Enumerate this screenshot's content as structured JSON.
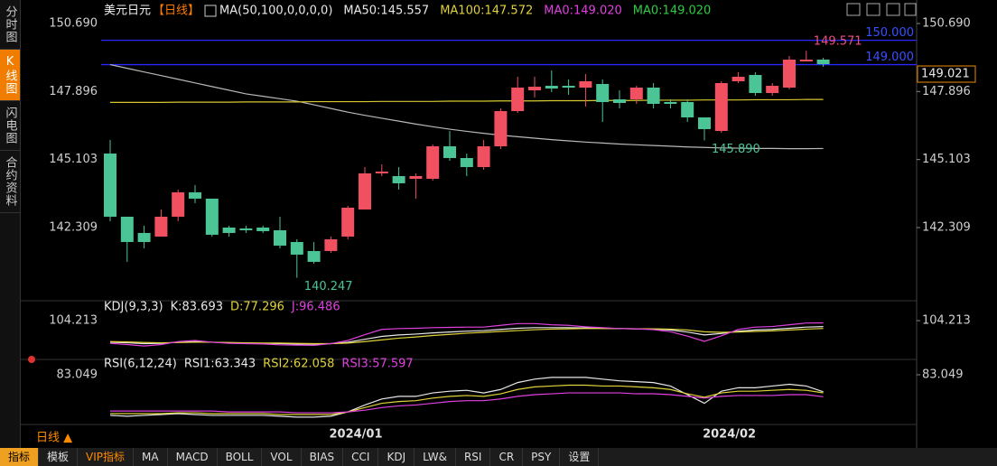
{
  "sidebar": [
    "分时图",
    "K线图",
    "闪电图",
    "合约资料"
  ],
  "period_button": "日线 ▲",
  "toolbar": [
    "指标",
    "模板",
    "VIP指标",
    "MA",
    "MACD",
    "BOLL",
    "VOL",
    "BIAS",
    "CCI",
    "KDJ",
    "LW&",
    "RSI",
    "CR",
    "PSY",
    "设置"
  ],
  "chart_data": [
    {
      "type": "candlestick",
      "title": "美元日元",
      "period": "【日线】",
      "legend": [
        "MA(50,100,0,0,0,0)",
        "MA50:145.557",
        "MA100:147.572",
        "MA0:149.020",
        "MA0:149.020"
      ],
      "legend_colors": [
        "#e8e8e8",
        "#e8e8e8",
        "#e0d23a",
        "#e040e0",
        "#2ecc40"
      ],
      "up_color": "#f0505f",
      "down_color": "#4cc596",
      "categories": [
        null,
        null,
        null,
        null,
        null,
        null,
        null,
        null,
        null,
        null,
        null,
        null,
        null,
        null,
        null,
        "2024/01",
        null,
        null,
        null,
        null,
        null,
        null,
        null,
        null,
        null,
        null,
        null,
        null,
        null,
        null,
        null,
        null,
        null,
        null,
        null,
        null,
        null,
        "2024/02",
        null,
        null,
        null,
        null,
        null
      ],
      "open": [
        145.35,
        142.755,
        142.088,
        141.939,
        142.755,
        143.756,
        143.497,
        142.31,
        142.273,
        142.31,
        142.199,
        141.717,
        141.346,
        141.346,
        141.939,
        143.052,
        144.535,
        144.424,
        144.312,
        144.312,
        145.647,
        145.165,
        144.794,
        145.647,
        147.093,
        147.946,
        148.131,
        148.131,
        148.057,
        148.206,
        147.575,
        147.575,
        148.057,
        147.464,
        147.464,
        146.834,
        146.277,
        148.317,
        148.576,
        147.835,
        148.057,
        149.133,
        149.207
      ],
      "close": [
        142.755,
        141.717,
        141.717,
        142.755,
        143.756,
        143.497,
        142.014,
        142.088,
        142.199,
        142.162,
        141.568,
        141.198,
        140.901,
        141.828,
        143.126,
        144.535,
        144.609,
        144.127,
        144.424,
        145.647,
        145.165,
        144.794,
        145.647,
        147.093,
        148.057,
        148.094,
        148.02,
        148.057,
        148.317,
        147.464,
        147.427,
        148.057,
        147.39,
        147.39,
        146.834,
        146.352,
        148.243,
        148.502,
        147.835,
        148.131,
        149.207,
        149.207,
        149.021
      ],
      "high": [
        145.907,
        142.755,
        142.385,
        143.052,
        143.868,
        144.053,
        143.497,
        142.385,
        142.385,
        142.385,
        142.755,
        141.828,
        141.717,
        141.939,
        143.2,
        144.794,
        144.906,
        144.794,
        144.535,
        145.721,
        146.277,
        145.35,
        145.907,
        147.205,
        148.502,
        148.502,
        148.762,
        148.391,
        148.613,
        148.391,
        147.946,
        148.131,
        148.243,
        147.575,
        147.575,
        146.834,
        148.317,
        148.688,
        148.688,
        148.243,
        149.355,
        149.571,
        149.281
      ],
      "low": [
        142.57,
        140.901,
        141.457,
        141.939,
        142.57,
        143.311,
        141.939,
        141.939,
        142.088,
        142.088,
        141.457,
        140.247,
        140.827,
        141.272,
        141.828,
        143.052,
        144.424,
        143.868,
        143.497,
        144.238,
        145.054,
        144.424,
        144.683,
        145.536,
        147.019,
        147.649,
        147.872,
        147.761,
        147.279,
        146.648,
        147.205,
        147.39,
        147.205,
        147.205,
        146.648,
        145.89,
        146.203,
        148.243,
        147.724,
        147.724,
        147.983,
        149.133,
        148.91
      ],
      "overlays": [
        {
          "color": "#b8b8b8",
          "values": [
            149.0,
            148.85,
            148.7,
            148.55,
            148.4,
            148.25,
            148.1,
            147.95,
            147.8,
            147.7,
            147.6,
            147.5,
            147.35,
            147.2,
            147.05,
            146.92,
            146.8,
            146.68,
            146.56,
            146.45,
            146.35,
            146.26,
            146.18,
            146.1,
            146.04,
            145.98,
            145.92,
            145.87,
            145.82,
            145.78,
            145.74,
            145.71,
            145.68,
            145.65,
            145.62,
            145.6,
            145.58,
            145.57,
            145.56,
            145.56,
            145.55,
            145.55,
            145.557
          ]
        },
        {
          "color": "#d8c830",
          "values": [
            147.45,
            147.45,
            147.45,
            147.45,
            147.46,
            147.46,
            147.46,
            147.46,
            147.47,
            147.47,
            147.47,
            147.47,
            147.48,
            147.48,
            147.48,
            147.48,
            147.49,
            147.49,
            147.49,
            147.49,
            147.5,
            147.5,
            147.5,
            147.51,
            147.51,
            147.51,
            147.52,
            147.52,
            147.52,
            147.53,
            147.53,
            147.53,
            147.54,
            147.54,
            147.54,
            147.55,
            147.55,
            147.55,
            147.56,
            147.56,
            147.56,
            147.57,
            147.572
          ]
        }
      ],
      "hlines": [
        {
          "value": 150,
          "label": "150.000"
        },
        {
          "value": 149,
          "label": "149.000"
        }
      ],
      "hline_color": "#2828ff",
      "annotations": [
        {
          "label": "140.247",
          "at": 11,
          "color": "#4cc596"
        },
        {
          "label": "145.890",
          "at": 35,
          "color": "#4cc596"
        },
        {
          "label": "149.571",
          "at": 41,
          "color": "#f0507a"
        }
      ],
      "ylim": [
        139.49,
        151.21
      ],
      "yticks": [
        {
          "value": 150.69,
          "label": "150.690"
        },
        147.896,
        145.103,
        142.309
      ]
    },
    {
      "type": "line",
      "legend": [
        "KDJ(9,3,3)",
        "K:83.693",
        "D:77.296",
        "J:96.486"
      ],
      "legend_colors": [
        "#e8e8e8",
        "#e8e8e8",
        "#e0d23a",
        "#e040e0"
      ],
      "series": [
        {
          "color": "#e8e8e8",
          "values": [
            30,
            28,
            25,
            26,
            30,
            32,
            30,
            28,
            27,
            26,
            25,
            24,
            23,
            25,
            30,
            40,
            50,
            55,
            58,
            62,
            65,
            68,
            70,
            74,
            78,
            80,
            80,
            80,
            79,
            78,
            77,
            76,
            75,
            72,
            65,
            55,
            60,
            68,
            72,
            74,
            78,
            82,
            83.693
          ]
        },
        {
          "color": "#e0d23a",
          "values": [
            32,
            31,
            29,
            28,
            29,
            30,
            30,
            29,
            28,
            27,
            27,
            26,
            25,
            25,
            27,
            32,
            38,
            44,
            48,
            53,
            57,
            61,
            64,
            67,
            70,
            73,
            75,
            76,
            77,
            77,
            77,
            76,
            76,
            75,
            72,
            66,
            64,
            65,
            67,
            69,
            72,
            75,
            77.296
          ]
        },
        {
          "color": "#e040e0",
          "values": [
            26,
            22,
            17,
            22,
            32,
            36,
            30,
            26,
            25,
            24,
            21,
            20,
            19,
            25,
            36,
            56,
            74,
            77,
            78,
            80,
            81,
            82,
            82,
            88,
            94,
            94,
            90,
            88,
            83,
            80,
            77,
            76,
            73,
            66,
            51,
            33,
            52,
            74,
            82,
            84,
            90,
            96,
            96.486
          ]
        }
      ],
      "ylim": [
        -20,
        151
      ],
      "yticks": [
        104.213
      ]
    },
    {
      "type": "line",
      "legend": [
        "RSI(6,12,24)",
        "RSI1:63.343",
        "RSI2:62.058",
        "RSI3:57.597"
      ],
      "legend_colors": [
        "#e8e8e8",
        "#e8e8e8",
        "#e0d23a",
        "#e040e0"
      ],
      "series": [
        {
          "color": "#e8e8e8",
          "values": [
            36,
            35,
            36,
            37,
            38,
            37,
            36,
            36,
            36,
            36,
            35,
            34,
            34,
            35,
            40,
            48,
            55,
            58,
            58,
            62,
            64,
            65,
            62,
            66,
            74,
            78,
            80,
            80,
            80,
            78,
            76,
            75,
            74,
            70,
            60,
            50,
            64,
            68,
            68,
            70,
            72,
            70,
            63.343
          ]
        },
        {
          "color": "#e0d23a",
          "values": [
            38,
            38,
            38,
            38,
            39,
            39,
            38,
            38,
            38,
            38,
            37,
            37,
            37,
            37,
            40,
            45,
            50,
            52,
            53,
            56,
            58,
            59,
            58,
            61,
            66,
            69,
            70,
            71,
            71,
            70,
            70,
            69,
            68,
            66,
            61,
            57,
            62,
            64,
            64,
            65,
            66,
            65,
            62.058
          ]
        },
        {
          "color": "#e040e0",
          "values": [
            41,
            41,
            41,
            41,
            41,
            41,
            41,
            40,
            40,
            40,
            40,
            39,
            39,
            39,
            40,
            42,
            45,
            47,
            48,
            50,
            52,
            53,
            53,
            55,
            58,
            60,
            61,
            62,
            62,
            62,
            62,
            61,
            61,
            60,
            58,
            56,
            58,
            59,
            59,
            59,
            60,
            60,
            57.597
          ]
        }
      ],
      "ylim": [
        30.7,
        98.7
      ],
      "yticks": [
        83.049
      ]
    }
  ]
}
